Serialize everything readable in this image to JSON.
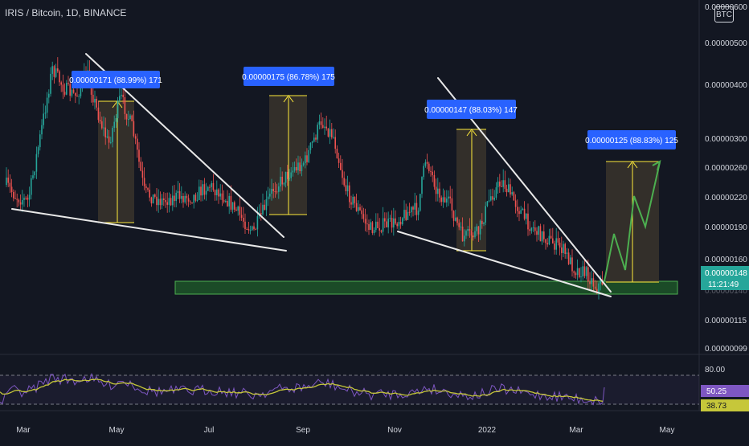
{
  "title": "IRIS / Bitcoin, 1D, BINANCE",
  "currency_badge": "BTC",
  "price_axis": {
    "ticks": [
      "0.00000600",
      "0.00000500",
      "0.00000400",
      "0.00000300",
      "0.00000260",
      "0.00000220",
      "0.00000190",
      "0.00000160",
      "0.00000115",
      "0.00000099"
    ],
    "current_price": "0.00000148",
    "countdown": "11:21:49",
    "hidden_label": "0.00000140"
  },
  "time_axis": {
    "labels": [
      "Mar",
      "May",
      "Jul",
      "Sep",
      "Nov",
      "2022",
      "Mar",
      "May"
    ]
  },
  "measure_labels": [
    "0.00000171 (88.99%) 171",
    "0.00000175 (86.78%) 175",
    "0.00000147 (88.03%) 147",
    "0.00000125 (88.83%) 125"
  ],
  "rsi": {
    "top_level": "80.00",
    "rsi_value": "50.25",
    "ma_value": "38.73"
  },
  "colors": {
    "background": "#131722",
    "up": "#26a69a",
    "down": "#ef5350",
    "label_blue": "#2962ff",
    "support_zone": "#1f5e2a",
    "measure_box": "#3a342c",
    "measure_arrow": "#ffeb3b",
    "projection": "#4caf50",
    "rsi_line": "#7e57c2",
    "rsi_ma": "#c6c73a"
  },
  "icons": [
    "trend-line",
    "measure-box",
    "projection-arrow"
  ]
}
